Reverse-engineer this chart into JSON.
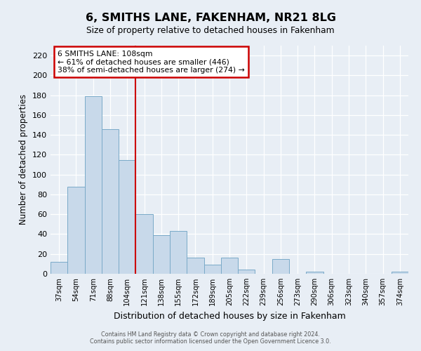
{
  "title": "6, SMITHS LANE, FAKENHAM, NR21 8LG",
  "subtitle": "Size of property relative to detached houses in Fakenham",
  "xlabel": "Distribution of detached houses by size in Fakenham",
  "ylabel": "Number of detached properties",
  "bar_labels": [
    "37sqm",
    "54sqm",
    "71sqm",
    "88sqm",
    "104sqm",
    "121sqm",
    "138sqm",
    "155sqm",
    "172sqm",
    "189sqm",
    "205sqm",
    "222sqm",
    "239sqm",
    "256sqm",
    "273sqm",
    "290sqm",
    "306sqm",
    "323sqm",
    "340sqm",
    "357sqm",
    "374sqm"
  ],
  "bar_values": [
    12,
    88,
    179,
    146,
    115,
    60,
    39,
    43,
    16,
    9,
    16,
    4,
    0,
    15,
    0,
    2,
    0,
    0,
    0,
    0,
    2
  ],
  "bar_color": "#c8d9ea",
  "bar_edge_color": "#7aaac8",
  "vline_x_index": 4.5,
  "vline_color": "#cc0000",
  "ylim": [
    0,
    230
  ],
  "yticks": [
    0,
    20,
    40,
    60,
    80,
    100,
    120,
    140,
    160,
    180,
    200,
    220
  ],
  "annotation_title": "6 SMITHS LANE: 108sqm",
  "annotation_line1": "← 61% of detached houses are smaller (446)",
  "annotation_line2": "38% of semi-detached houses are larger (274) →",
  "annotation_box_color": "#cc0000",
  "footer1": "Contains HM Land Registry data © Crown copyright and database right 2024.",
  "footer2": "Contains public sector information licensed under the Open Government Licence 3.0.",
  "bg_color": "#e8eef5",
  "plot_bg_color": "#e8eef5"
}
